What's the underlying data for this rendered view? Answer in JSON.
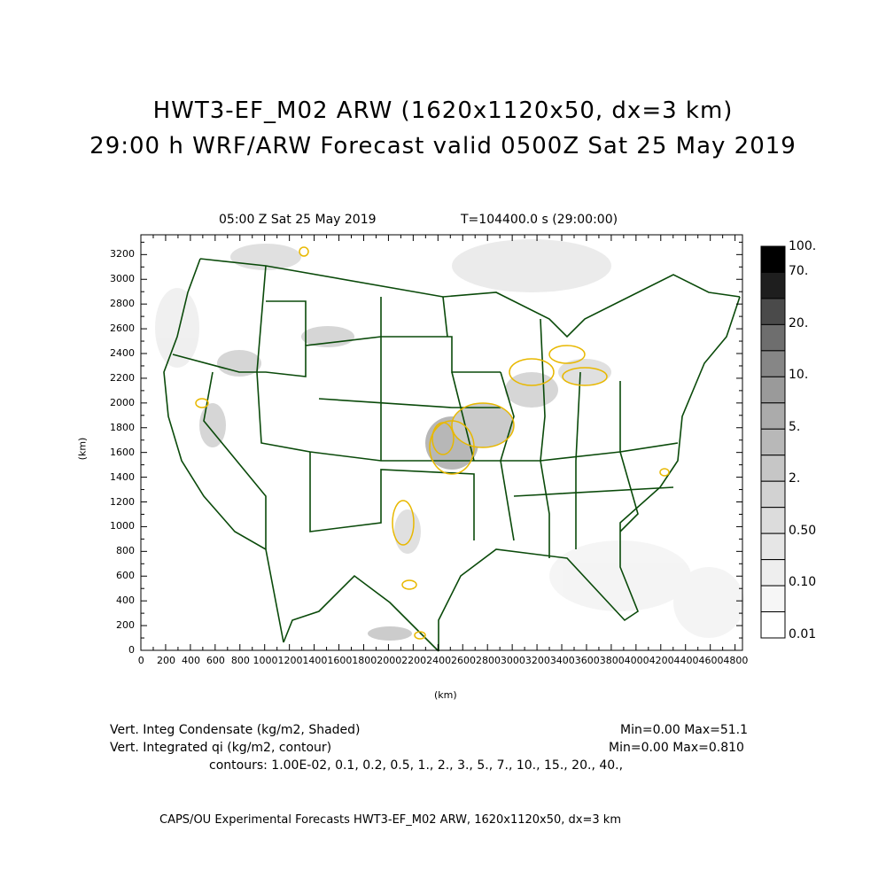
{
  "header": {
    "title_line1": "HWT3-EF_M02 ARW (1620x1120x50, dx=3 km)",
    "title_line2": "29:00 h WRF/ARW Forecast valid 0500Z Sat 25 May 2019"
  },
  "plot": {
    "subtitle_left": "05:00 Z Sat 25 May 2019",
    "subtitle_right": "T=104400.0 s (29:00:00)",
    "xlabel": "(km)",
    "ylabel": "(km)",
    "x_ticks": [
      "0",
      "200",
      "400",
      "600",
      "800",
      "1000",
      "1200",
      "1400",
      "1600",
      "1800",
      "2000",
      "2200",
      "2400",
      "2600",
      "2800",
      "3000",
      "3200",
      "3400",
      "3600",
      "3800",
      "4000",
      "4200",
      "4400",
      "4600",
      "4800"
    ],
    "y_ticks": [
      "0",
      "200",
      "400",
      "600",
      "800",
      "1000",
      "1200",
      "1400",
      "1600",
      "1800",
      "2000",
      "2200",
      "2400",
      "2600",
      "2800",
      "3000",
      "3200"
    ],
    "x_range_km": [
      0,
      4860
    ],
    "y_range_km": [
      0,
      3360
    ],
    "colors": {
      "border": "#0a4a0a",
      "contour": "#e8b800"
    }
  },
  "colorbar": {
    "labels": [
      "100.",
      "70.",
      "20.",
      "10.",
      "5.",
      "2.",
      "0.50",
      "0.10",
      "0.01"
    ],
    "shades": [
      "#000000",
      "#1e1e1e",
      "#4a4a4a",
      "#6e6e6e",
      "#868686",
      "#9a9a9a",
      "#ababab",
      "#b8b8b8",
      "#c6c6c6",
      "#d2d2d2",
      "#dcdcdc",
      "#e6e6e6",
      "#eeeeee",
      "#f6f6f6",
      "#ffffff"
    ]
  },
  "footer": {
    "field1_label": "Vert. Integ Condensate (kg/m2, Shaded)",
    "field1_range": "Min=0.00 Max=51.1",
    "field2_label": "Vert. Integrated qi (kg/m2, contour)",
    "field2_range": "Min=0.00 Max=0.810",
    "contours": "contours: 1.00E-02, 0.1, 0.2, 0.5, 1., 2., 3., 5., 7., 10., 15., 20., 40.,",
    "credit": "CAPS/OU Experimental Forecasts  HWT3-EF_M02 ARW, 1620x1120x50, dx=3 km"
  }
}
